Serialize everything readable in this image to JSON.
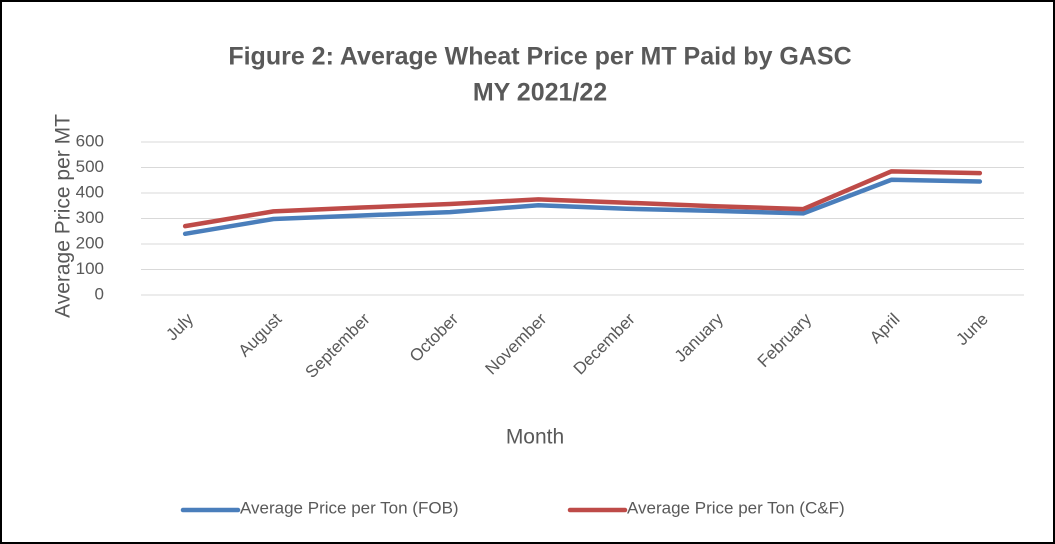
{
  "chart_data": {
    "type": "line",
    "title": [
      "Figure 2: Average Wheat Price per MT Paid by GASC",
      "MY 2021/22"
    ],
    "x_label": "Month",
    "y_label": "Average Price per MT",
    "categories": [
      "July",
      "August",
      "September",
      "October",
      "November",
      "December",
      "January",
      "February",
      "April",
      "June"
    ],
    "series": [
      {
        "name": "Average Price per Ton (FOB)",
        "color": "#4a7ebb",
        "values": [
          240,
          298,
          312,
          325,
          352,
          338,
          330,
          320,
          452,
          445
        ]
      },
      {
        "name": "Average Price per Ton (C&F)",
        "color": "#be4b48",
        "values": [
          270,
          328,
          343,
          357,
          375,
          362,
          348,
          337,
          485,
          478
        ]
      }
    ],
    "ylim": [
      0,
      600
    ],
    "yticks": [
      0,
      100,
      200,
      300,
      400,
      500,
      600
    ],
    "grid": true,
    "legend": "bottom"
  }
}
